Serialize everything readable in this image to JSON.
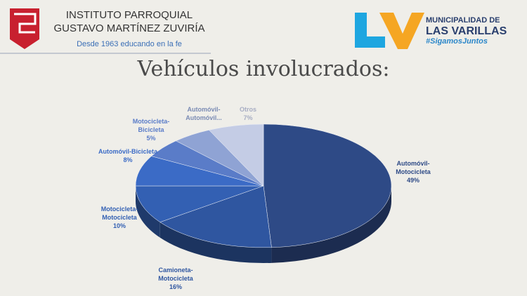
{
  "header": {
    "institute_line1": "INSTITUTO PARROQUIAL",
    "institute_line2": "GUSTAVO MARTÍNEZ ZUVIRÍA",
    "institute_motto": "Desde 1963 educando en la fe",
    "municipality_line1": "MUNICIPALIDAD DE",
    "municipality_line2": "LAS VARILLAS",
    "municipality_tag": "#SigamosJuntos"
  },
  "chart_data": {
    "type": "pie",
    "title": "Vehículos involucrados:",
    "categories": [
      "Automóvil-Motocicleta",
      "Camioneta-Motocicleta",
      "Motocicleta-Motocicleta",
      "Automóvil-Bicicleta",
      "Motocicleta-Bicicleta",
      "Automóvil-Automóvil...",
      "Otros"
    ],
    "values": [
      49,
      16,
      10,
      8,
      5,
      5,
      7
    ],
    "value_labels": [
      "49%",
      "16%",
      "10%",
      "8%",
      "5%",
      null,
      "7%"
    ],
    "colors": [
      "#2e4a86",
      "#2f56a0",
      "#3360b3",
      "#3b6bc6",
      "#5a7cc8",
      "#8fa3d4",
      "#c4cce5"
    ]
  }
}
